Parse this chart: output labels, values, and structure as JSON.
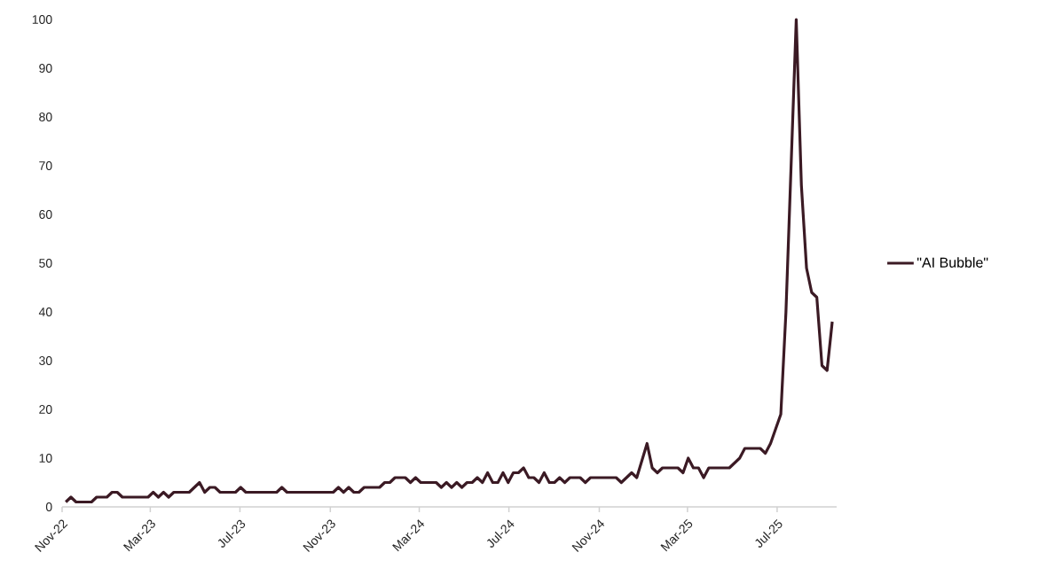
{
  "chart_data": {
    "type": "line",
    "x": [
      "2022-11-06",
      "2022-11-13",
      "2022-11-20",
      "2022-12-11",
      "2022-12-18",
      "2023-01-01",
      "2023-01-08",
      "2023-01-15",
      "2023-01-22",
      "2023-02-26",
      "2023-03-05",
      "2023-03-12",
      "2023-03-19",
      "2023-03-26",
      "2023-04-02",
      "2023-04-23",
      "2023-05-07",
      "2023-05-14",
      "2023-05-21",
      "2023-05-28",
      "2023-06-04",
      "2023-06-25",
      "2023-07-02",
      "2023-07-09",
      "2023-08-20",
      "2023-08-27",
      "2023-09-03",
      "2023-11-05",
      "2023-11-12",
      "2023-11-19",
      "2023-11-26",
      "2023-12-03",
      "2023-12-10",
      "2023-12-17",
      "2024-01-07",
      "2024-01-14",
      "2024-01-21",
      "2024-01-28",
      "2024-02-11",
      "2024-02-18",
      "2024-02-25",
      "2024-03-03",
      "2024-03-24",
      "2024-03-31",
      "2024-04-07",
      "2024-04-14",
      "2024-04-21",
      "2024-04-28",
      "2024-05-05",
      "2024-05-12",
      "2024-05-19",
      "2024-05-26",
      "2024-06-02",
      "2024-06-09",
      "2024-06-16",
      "2024-06-23",
      "2024-06-30",
      "2024-07-07",
      "2024-07-14",
      "2024-07-21",
      "2024-07-28",
      "2024-08-04",
      "2024-08-11",
      "2024-08-18",
      "2024-08-25",
      "2024-09-01",
      "2024-09-08",
      "2024-09-15",
      "2024-09-22",
      "2024-10-06",
      "2024-10-13",
      "2024-10-20",
      "2024-11-24",
      "2024-12-01",
      "2024-12-15",
      "2024-12-22",
      "2025-01-05",
      "2025-01-12",
      "2025-01-19",
      "2025-01-26",
      "2025-02-16",
      "2025-02-23",
      "2025-03-02",
      "2025-03-09",
      "2025-03-16",
      "2025-03-23",
      "2025-03-30",
      "2025-04-27",
      "2025-05-11",
      "2025-05-18",
      "2025-06-08",
      "2025-06-15",
      "2025-06-22",
      "2025-06-29",
      "2025-07-06",
      "2025-07-13",
      "2025-07-27",
      "2025-08-03",
      "2025-08-10",
      "2025-08-17",
      "2025-08-24",
      "2025-08-31",
      "2025-09-07",
      "2025-09-14"
    ],
    "series": [
      {
        "name": "\"AI Bubble\"",
        "color": "#3b1a24",
        "values": [
          1,
          2,
          1,
          1,
          2,
          2,
          3,
          3,
          2,
          2,
          3,
          2,
          3,
          2,
          3,
          3,
          5,
          3,
          4,
          4,
          3,
          3,
          4,
          3,
          3,
          4,
          3,
          3,
          4,
          3,
          4,
          3,
          3,
          4,
          4,
          5,
          5,
          6,
          6,
          5,
          6,
          5,
          5,
          4,
          5,
          4,
          5,
          4,
          5,
          5,
          6,
          5,
          7,
          5,
          5,
          7,
          5,
          7,
          7,
          8,
          6,
          6,
          5,
          7,
          5,
          5,
          6,
          5,
          6,
          6,
          5,
          6,
          6,
          5,
          7,
          6,
          13,
          8,
          7,
          8,
          8,
          7,
          10,
          8,
          8,
          6,
          8,
          8,
          10,
          12,
          12,
          11,
          13,
          16,
          19,
          40,
          100,
          66,
          49,
          44,
          43,
          29,
          28,
          38
        ]
      }
    ],
    "xlim": [
      "2022-11-01",
      "2025-09-20"
    ],
    "xticks": [
      {
        "value": "2022-11-01",
        "label": "Nov-22"
      },
      {
        "value": "2023-03-01",
        "label": "Mar-23"
      },
      {
        "value": "2023-07-01",
        "label": "Jul-23"
      },
      {
        "value": "2023-11-01",
        "label": "Nov-23"
      },
      {
        "value": "2024-03-01",
        "label": "Mar-24"
      },
      {
        "value": "2024-07-01",
        "label": "Jul-24"
      },
      {
        "value": "2024-11-01",
        "label": "Nov-24"
      },
      {
        "value": "2025-03-01",
        "label": "Mar-25"
      },
      {
        "value": "2025-07-01",
        "label": "Jul-25"
      }
    ],
    "ylim": [
      0,
      100
    ],
    "yticks": [
      0,
      10,
      20,
      30,
      40,
      50,
      60,
      70,
      80,
      90,
      100
    ],
    "grid": false,
    "legend": "right",
    "marker": "none",
    "line_style": "solid"
  }
}
